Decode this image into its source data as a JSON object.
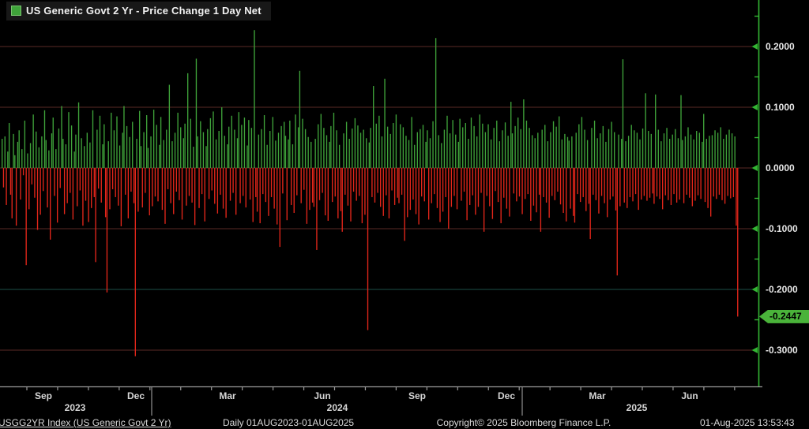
{
  "legend": {
    "title": "US Generic Govt 2 Yr - Price Change 1 Day Net"
  },
  "footer": {
    "instrument": "USGG2YR Index (US Generic Govt 2 Yr)",
    "period": "Daily 01AUG2023-01AUG2025",
    "copyright": "Copyright© 2025 Bloomberg Finance L.P.",
    "timestamp": "01-Aug-2025 13:53:43"
  },
  "chart_data": {
    "type": "bar",
    "title": "US Generic Govt 2 Yr - Price Change 1 Day Net",
    "xlabel": "",
    "ylabel": "Price Change 1 Day Net",
    "ylim": [
      -0.365,
      0.275
    ],
    "grid": true,
    "legend_position": "top-left",
    "colors": {
      "up": "#3fa33a",
      "down": "#e3261a",
      "axis_y": "#33b533",
      "axis_x": "#9a9a9a",
      "grid": "#5a2a26",
      "grid_special": "#1d4f49",
      "separator": "#8f8f8f",
      "text": "#d6d6d6",
      "badge_bg": "#4ab33a",
      "badge_text": "#000000"
    },
    "y_axis": {
      "ticks": [
        {
          "label": "0.2000",
          "value": 0.2,
          "grid_color": "#5a2a26"
        },
        {
          "label": "0.1000",
          "value": 0.1,
          "grid_color": "#5a2a26"
        },
        {
          "label": "0.0000",
          "value": 0.0,
          "grid_color": "#5a2a26"
        },
        {
          "label": "-0.1000",
          "value": -0.1,
          "grid_color": "#5a2a26"
        },
        {
          "label": "-0.2000",
          "value": -0.2,
          "grid_color": "#1d4f49"
        },
        {
          "label": "-0.3000",
          "value": -0.3,
          "grid_color": "#5a2a26"
        }
      ],
      "minor_ticks": [
        0.25,
        0.15,
        0.05,
        -0.05,
        -0.15,
        -0.25
      ]
    },
    "last": {
      "value": -0.2447,
      "label": "-0.2447"
    },
    "x_axis": {
      "range": "01AUG2023-01AUG2025",
      "months": [
        {
          "label": "Sep",
          "x": 55
        },
        {
          "label": "Dec",
          "x": 172
        },
        {
          "label": "Mar",
          "x": 288
        },
        {
          "label": "Jun",
          "x": 408
        },
        {
          "label": "Sep",
          "x": 528
        },
        {
          "label": "Dec",
          "x": 641
        },
        {
          "label": "Mar",
          "x": 756
        },
        {
          "label": "Jun",
          "x": 873
        }
      ],
      "years": [
        {
          "label": "2023",
          "x": 95
        },
        {
          "label": "2024",
          "x": 427
        },
        {
          "label": "2025",
          "x": 806
        }
      ],
      "year_separators_x": [
        192,
        661
      ]
    },
    "values": [
      0.048,
      -0.032,
      0.052,
      -0.061,
      0.027,
      0.074,
      -0.044,
      -0.083,
      0.056,
      0.021,
      -0.095,
      0.043,
      0.062,
      -0.052,
      0.031,
      -0.012,
      0.078,
      -0.16,
      0.024,
      -0.068,
      0.041,
      -0.027,
      0.088,
      -0.049,
      0.06,
      -0.102,
      0.034,
      -0.077,
      0.052,
      -0.038,
      0.095,
      0.046,
      -0.065,
      0.029,
      -0.118,
      0.057,
      0.083,
      -0.046,
      0.031,
      -0.09,
      0.065,
      -0.033,
      0.102,
      0.048,
      -0.076,
      0.039,
      -0.058,
      0.092,
      -0.041,
      0.07,
      -0.085,
      0.027,
      0.055,
      -0.063,
      0.108,
      -0.037,
      0.049,
      -0.095,
      0.036,
      -0.054,
      0.058,
      -0.089,
      0.042,
      -0.066,
      0.095,
      -0.048,
      -0.155,
      0.063,
      -0.034,
      0.086,
      -0.057,
      0.039,
      0.072,
      -0.081,
      -0.205,
      0.044,
      -0.068,
      0.091,
      -0.035,
      0.062,
      -0.048,
      0.085,
      -0.062,
      0.037,
      -0.096,
      0.058,
      0.102,
      -0.044,
      0.069,
      -0.083,
      0.051,
      -0.039,
      0.076,
      -0.058,
      -0.31,
      0.048,
      -0.072,
      0.094,
      0.036,
      -0.065,
      0.059,
      -0.041,
      0.087,
      0.033,
      -0.078,
      0.052,
      -0.063,
      0.096,
      -0.047,
      0.071,
      -0.055,
      0.038,
      0.084,
      -0.069,
      0.046,
      -0.092,
      0.063,
      -0.035,
      0.137,
      -0.058,
      0.044,
      -0.076,
      0.058,
      -0.039,
      0.091,
      -0.053,
      0.067,
      -0.085,
      0.049,
      0.073,
      -0.062,
      0.156,
      -0.046,
      0.081,
      -0.057,
      0.035,
      -0.094,
      0.18,
      0.052,
      -0.066,
      0.077,
      -0.043,
      0.059,
      -0.088,
      0.036,
      0.064,
      -0.051,
      0.082,
      -0.037,
      0.093,
      -0.059,
      0.047,
      -0.075,
      0.061,
      -0.044,
      0.1,
      -0.067,
      0.053,
      -0.082,
      0.039,
      0.068,
      -0.054,
      0.086,
      -0.041,
      0.063,
      -0.077,
      0.049,
      0.092,
      -0.058,
      0.071,
      -0.046,
      0.083,
      -0.065,
      0.037,
      0.079,
      -0.052,
      0.066,
      -0.089,
      0.227,
      -0.048,
      -0.072,
      0.055,
      -0.091,
      0.064,
      -0.043,
      0.087,
      -0.056,
      0.038,
      -0.079,
      0.061,
      -0.048,
      0.084,
      -0.067,
      0.045,
      -0.093,
      0.058,
      -0.13,
      0.069,
      -0.042,
      0.076,
      0.053,
      -0.086,
      0.047,
      0.078,
      -0.061,
      0.039,
      -0.074,
      0.088,
      -0.045,
      0.067,
      0.16,
      -0.058,
      0.081,
      -0.036,
      0.064,
      -0.092,
      0.051,
      -0.069,
      0.043,
      -0.057,
      -0.064,
      0.048,
      -0.135,
      0.072,
      -0.053,
      0.089,
      -0.041,
      0.066,
      -0.078,
      0.054,
      -0.087,
      0.043,
      0.069,
      -0.056,
      0.091,
      -0.047,
      0.062,
      -0.083,
      0.038,
      -0.071,
      -0.105,
      0.057,
      -0.044,
      0.076,
      -0.062,
      0.048,
      -0.088,
      0.065,
      -0.039,
      0.082,
      -0.054,
      0.07,
      -0.046,
      0.058,
      -0.091,
      0.063,
      -0.077,
      0.049,
      -0.267,
      0.042,
      0.066,
      -0.048,
      0.135,
      -0.057,
      0.073,
      -0.041,
      0.086,
      -0.064,
      0.052,
      -0.079,
      0.147,
      -0.045,
      0.068,
      -0.083,
      0.056,
      -0.037,
      0.074,
      -0.061,
      0.088,
      -0.049,
      -0.058,
      0.072,
      -0.044,
      0.067,
      -0.12,
      0.053,
      -0.081,
      0.046,
      -0.069,
      0.084,
      -0.052,
      0.038,
      -0.076,
      0.059,
      -0.093,
      0.064,
      -0.047,
      0.071,
      -0.055,
      0.043,
      0.062,
      -0.085,
      0.049,
      -0.058,
      0.077,
      -0.043,
      0.214,
      -0.066,
      0.054,
      -0.089,
      0.041,
      -0.072,
      0.063,
      -0.048,
      0.086,
      -0.1,
      0.057,
      -0.064,
      0.079,
      -0.046,
      0.055,
      -0.068,
      0.043,
      0.081,
      -0.054,
      0.067,
      -0.039,
      0.074,
      -0.086,
      0.048,
      -0.061,
      0.083,
      -0.045,
      0.069,
      -0.077,
      0.052,
      -0.064,
      0.088,
      -0.041,
      0.073,
      -0.105,
      0.059,
      -0.046,
      0.072,
      -0.063,
      0.047,
      -0.084,
      0.066,
      -0.038,
      0.078,
      -0.056,
      0.044,
      -0.091,
      0.062,
      -0.049,
      0.075,
      -0.067,
      0.053,
      -0.08,
      0.109,
      0.057,
      -0.042,
      0.069,
      -0.055,
      0.083,
      -0.047,
      0.064,
      -0.076,
      0.113,
      -0.051,
      0.078,
      -0.043,
      0.066,
      -0.087,
      0.054,
      -0.062,
      0.049,
      -0.073,
      0.058,
      -0.044,
      -0.105,
      0.063,
      -0.048,
      0.071,
      -0.057,
      0.044,
      -0.082,
      0.059,
      -0.046,
      0.077,
      -0.053,
      0.068,
      -0.039,
      0.085,
      -0.06,
      0.047,
      -0.074,
      0.056,
      -0.088,
      0.051,
      0.045,
      -0.067,
      0.052,
      -0.079,
      -0.09,
      0.058,
      -0.043,
      0.072,
      -0.056,
      0.084,
      -0.048,
      0.063,
      -0.071,
      0.046,
      -0.059,
      -0.117,
      0.066,
      -0.044,
      0.078,
      -0.053,
      0.049,
      -0.075,
      0.057,
      -0.046,
      0.069,
      -0.058,
      0.043,
      -0.081,
      0.064,
      -0.052,
      0.076,
      -0.047,
      0.059,
      -0.07,
      -0.177,
      0.055,
      -0.063,
      0.048,
      0.179,
      -0.057,
      0.044,
      -0.066,
      0.053,
      -0.048,
      0.071,
      -0.055,
      0.062,
      -0.043,
      0.058,
      -0.069,
      0.047,
      -0.052,
      0.065,
      -0.046,
      0.123,
      -0.054,
      0.061,
      -0.049,
      0.056,
      -0.042,
      -0.059,
      0.121,
      -0.047,
      0.063,
      -0.051,
      0.044,
      -0.068,
      0.057,
      -0.045,
      0.066,
      -0.053,
      0.048,
      -0.061,
      0.055,
      -0.043,
      0.064,
      -0.057,
      0.049,
      -0.052,
      0.12,
      0.046,
      -0.058,
      0.052,
      -0.044,
      0.067,
      -0.049,
      0.055,
      -0.063,
      0.047,
      -0.054,
      0.061,
      -0.045,
      0.058,
      -0.051,
      0.043,
      0.089,
      -0.056,
      0.048,
      -0.066,
      0.053,
      -0.08,
      0.054,
      -0.047,
      0.062,
      -0.051,
      0.058,
      -0.044,
      0.067,
      -0.053,
      0.048,
      -0.059,
      0.055,
      -0.046,
      0.063,
      -0.05,
      0.057,
      -0.048,
      0.052,
      -0.095,
      -0.2447
    ]
  }
}
